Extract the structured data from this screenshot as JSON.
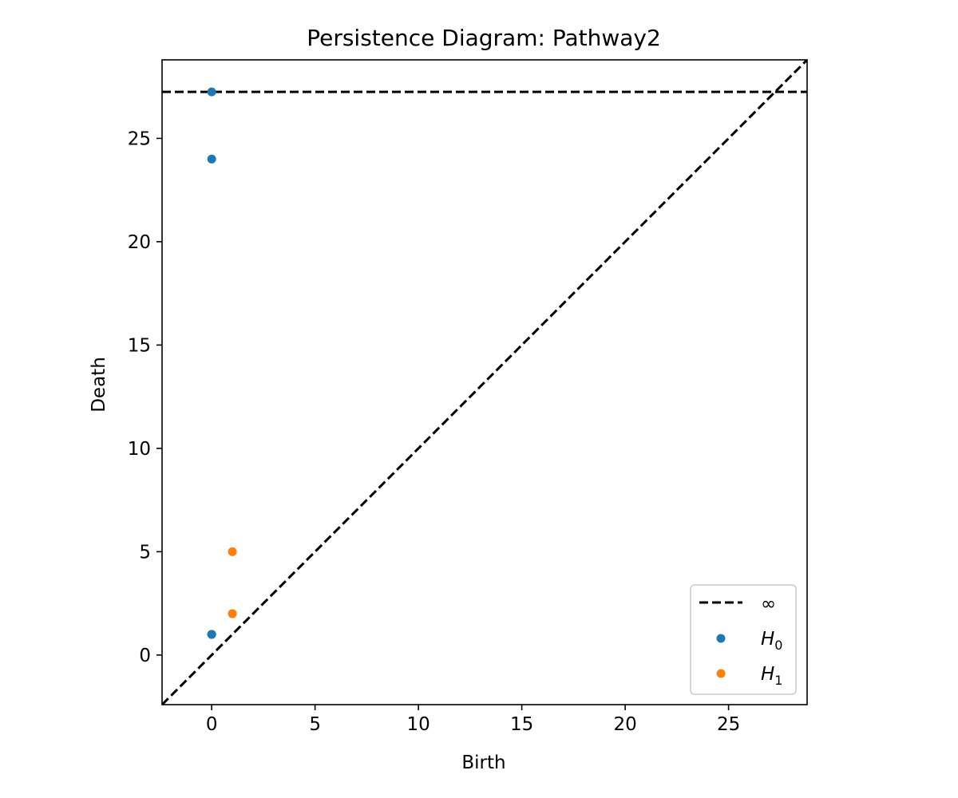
{
  "chart_data": {
    "type": "scatter",
    "title": "Persistence Diagram: Pathway2",
    "xlabel": "Birth",
    "ylabel": "Death",
    "xlim": [
      -2.4,
      28.8
    ],
    "ylim": [
      -2.4,
      28.8
    ],
    "xticks": [
      0,
      5,
      10,
      15,
      20,
      25
    ],
    "yticks": [
      0,
      5,
      10,
      15,
      20,
      25
    ],
    "grid": false,
    "legend_position": "bottom-right",
    "diagonal": true,
    "infinity_line": {
      "y": 27.25,
      "label": "∞",
      "color": "#000000"
    },
    "series": [
      {
        "name": "H",
        "subscript": "0",
        "color": "#1f77b4",
        "points": [
          [
            0,
            27.25
          ],
          [
            0,
            24
          ],
          [
            0,
            1
          ],
          [
            0,
            1
          ],
          [
            0,
            1
          ]
        ]
      },
      {
        "name": "H",
        "subscript": "1",
        "color": "#ff7f0e",
        "points": [
          [
            1,
            5
          ],
          [
            1,
            2
          ],
          [
            1,
            2
          ]
        ]
      }
    ]
  }
}
